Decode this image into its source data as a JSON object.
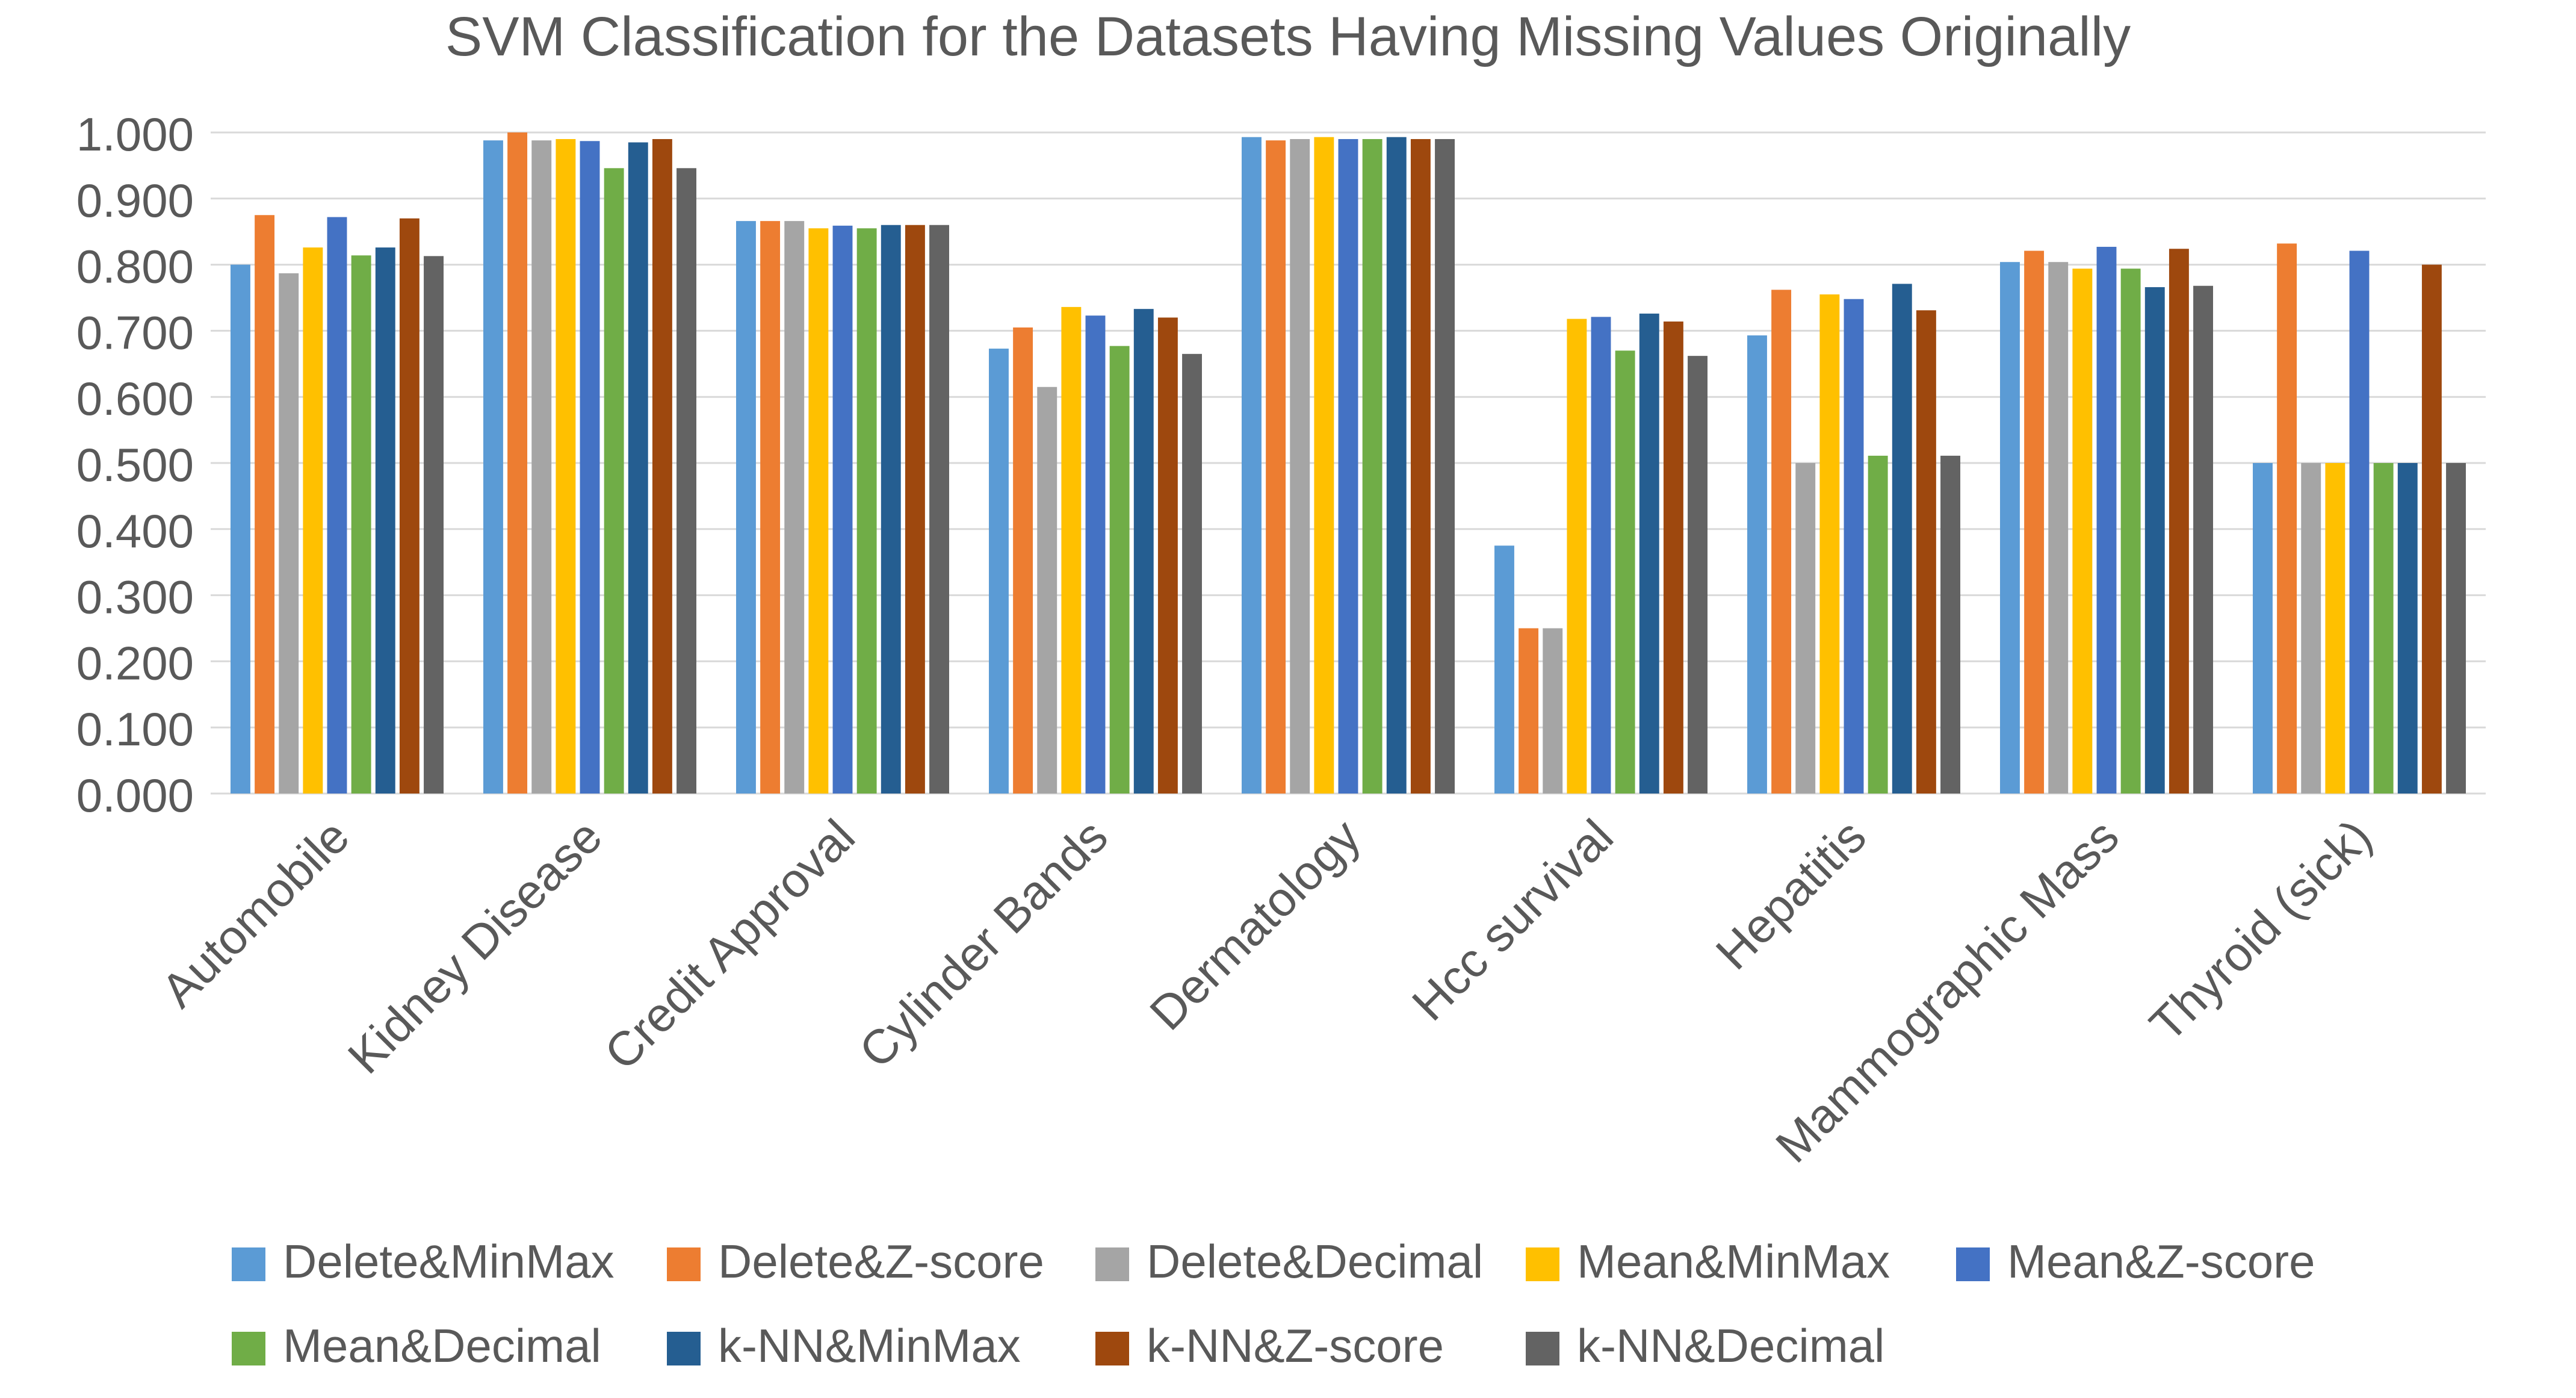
{
  "chart_data": {
    "type": "bar",
    "title": "SVM Classification for the Datasets Having Missing Values Originally",
    "xlabel": "",
    "ylabel": "",
    "ylim": [
      0,
      1.0
    ],
    "yticks": [
      "0.000",
      "0.100",
      "0.200",
      "0.300",
      "0.400",
      "0.500",
      "0.600",
      "0.700",
      "0.800",
      "0.900",
      "1.000"
    ],
    "grid": true,
    "legend_position": "bottom",
    "categories": [
      "Automobile",
      "Kidney Disease",
      "Credit Approval",
      "Cylinder Bands",
      "Dermatology",
      "Hcc survival",
      "Hepatitis",
      "Mammographic Mass",
      "Thyroid (sick)"
    ],
    "series": [
      {
        "name": "Delete&MinMax",
        "color": "#5B9BD5",
        "values": [
          0.8,
          0.988,
          0.866,
          0.673,
          0.993,
          0.375,
          0.693,
          0.804,
          0.5
        ]
      },
      {
        "name": "Delete&Z-score",
        "color": "#ED7D31",
        "values": [
          0.875,
          1.0,
          0.866,
          0.705,
          0.988,
          0.25,
          0.762,
          0.821,
          0.832
        ]
      },
      {
        "name": "Delete&Decimal",
        "color": "#A5A5A5",
        "values": [
          0.787,
          0.988,
          0.866,
          0.615,
          0.99,
          0.25,
          0.5,
          0.804,
          0.5
        ]
      },
      {
        "name": "Mean&MinMax",
        "color": "#FFC000",
        "values": [
          0.826,
          0.99,
          0.855,
          0.736,
          0.993,
          0.718,
          0.755,
          0.794,
          0.5
        ]
      },
      {
        "name": "Mean&Z-score",
        "color": "#4472C4",
        "values": [
          0.872,
          0.987,
          0.859,
          0.723,
          0.99,
          0.721,
          0.748,
          0.827,
          0.821
        ]
      },
      {
        "name": "Mean&Decimal",
        "color": "#70AD47",
        "values": [
          0.814,
          0.946,
          0.855,
          0.677,
          0.99,
          0.67,
          0.511,
          0.794,
          0.5
        ]
      },
      {
        "name": "k-NN&MinMax",
        "color": "#255E91",
        "values": [
          0.826,
          0.985,
          0.86,
          0.733,
          0.993,
          0.726,
          0.771,
          0.766,
          0.5
        ]
      },
      {
        "name": "k-NN&Z-score",
        "color": "#9E480E",
        "values": [
          0.87,
          0.99,
          0.86,
          0.72,
          0.99,
          0.714,
          0.731,
          0.824,
          0.8
        ]
      },
      {
        "name": "k-NN&Decimal",
        "color": "#636363",
        "values": [
          0.813,
          0.946,
          0.86,
          0.665,
          0.99,
          0.662,
          0.511,
          0.768,
          0.5
        ]
      }
    ]
  },
  "colors": {
    "title": "#595959",
    "axis_text": "#595959",
    "gridline": "#D9D9D9",
    "axis_line": "#D9D9D9"
  }
}
